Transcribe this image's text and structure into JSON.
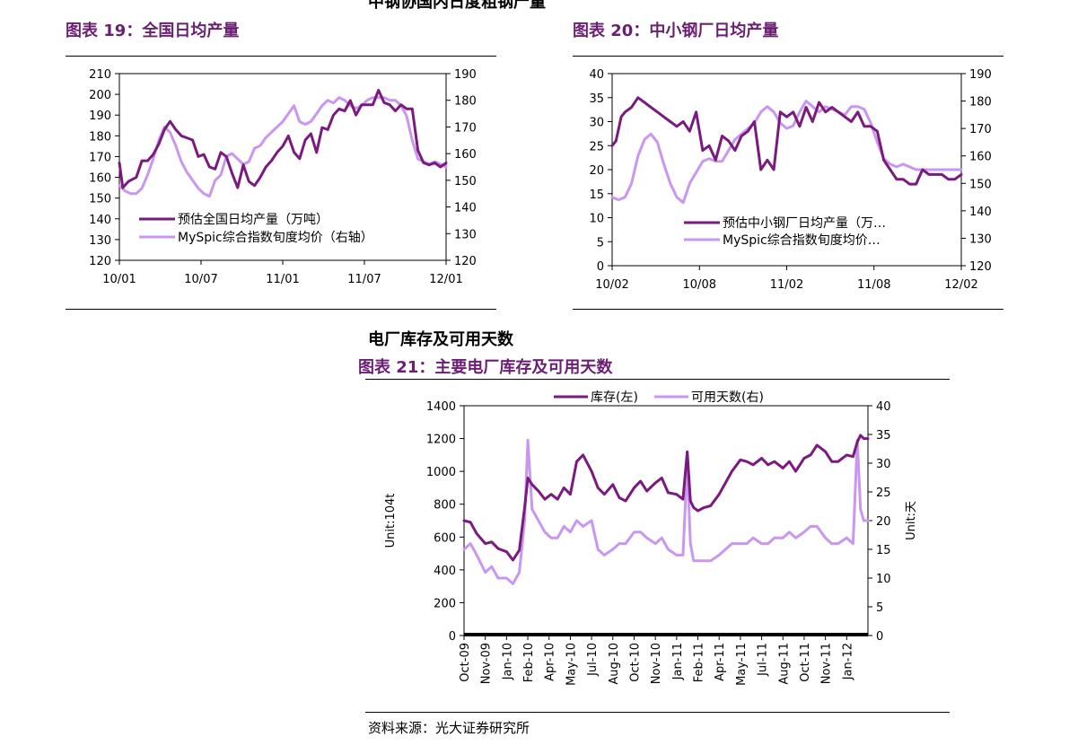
{
  "page": {
    "top_heading": "中钢协国内日度粗钢产量",
    "section_heading": "电厂库存及可用天数",
    "source": "资料来源：光大证券研究所"
  },
  "colors": {
    "dark_series": "#7a1a7f",
    "light_series": "#c996f0",
    "title": "#6b1f73"
  },
  "chart_data": [
    {
      "id": "fig19",
      "fig_label": "图表 19：全国日均产量",
      "type": "line",
      "x_ticks": [
        "10/01",
        "10/07",
        "11/01",
        "11/07",
        "12/01"
      ],
      "x_range": [
        0,
        29
      ],
      "y_left": {
        "range": [
          120,
          210
        ],
        "ticks": [
          120,
          130,
          140,
          150,
          160,
          170,
          180,
          190,
          200,
          210
        ]
      },
      "y_right": {
        "range": [
          120,
          190
        ],
        "ticks": [
          120,
          130,
          140,
          150,
          160,
          170,
          180,
          190
        ]
      },
      "legend": [
        "预估全国日均产量（万吨）",
        "MySpic综合指数旬度均价（右轴）"
      ],
      "series": [
        {
          "name": "预估全国日均产量（万吨）",
          "axis": "left",
          "color_key": "dark_series",
          "x": [
            0,
            0.3,
            0.8,
            1.5,
            2,
            2.5,
            3,
            3.5,
            4,
            4.5,
            5,
            5.5,
            6,
            6.5,
            7,
            7.5,
            8,
            8.5,
            9,
            9.5,
            10,
            10.5,
            11,
            11.5,
            12,
            12.5,
            13,
            13.5,
            14,
            14.5,
            15,
            15.5,
            16,
            16.5,
            17,
            17.5,
            18,
            18.5,
            19,
            19.5,
            20,
            20.5,
            21,
            21.5,
            22,
            22.5,
            23,
            23.5,
            24,
            24.5,
            25,
            25.5,
            26,
            26.5,
            27,
            27.5,
            28,
            28.5,
            29
          ],
          "values": [
            167,
            155,
            158,
            160,
            168,
            168,
            171,
            176,
            183,
            187,
            183,
            180,
            179,
            178,
            170,
            171,
            165,
            164,
            172,
            170,
            162,
            155,
            166,
            158,
            156,
            160,
            165,
            168,
            172,
            175,
            180,
            172,
            169,
            178,
            181,
            172,
            184,
            183,
            190,
            193,
            192,
            197,
            190,
            195,
            195,
            195,
            202,
            196,
            195,
            192,
            195,
            193,
            193,
            173,
            167,
            166,
            167,
            165,
            167
          ]
        },
        {
          "name": "MySpic综合指数旬度均价（右轴）",
          "axis": "right",
          "color_key": "light_series",
          "x": [
            0,
            0.5,
            1,
            1.5,
            2,
            2.5,
            3,
            3.5,
            4,
            4.5,
            5,
            5.5,
            6,
            6.5,
            7,
            7.5,
            8,
            8.5,
            9,
            9.5,
            10,
            10.5,
            11,
            11.5,
            12,
            12.5,
            13,
            13.5,
            14,
            14.5,
            15,
            15.5,
            16,
            16.5,
            17,
            17.5,
            18,
            18.5,
            19,
            19.5,
            20,
            20.5,
            21,
            21.5,
            22,
            22.5,
            23,
            23.5,
            24,
            24.5,
            25,
            25.5,
            26,
            26.5,
            27,
            27.5,
            28,
            28.5,
            29
          ],
          "values": [
            148,
            146,
            145,
            145,
            147,
            152,
            158,
            165,
            170,
            168,
            163,
            157,
            153,
            150,
            147,
            145,
            144,
            150,
            152,
            159,
            160,
            158,
            156,
            157,
            162,
            163,
            166,
            168,
            170,
            172,
            175,
            178,
            172,
            171,
            172,
            175,
            178,
            180,
            179,
            181,
            180,
            178,
            177,
            178,
            180,
            181,
            181,
            181,
            180,
            180,
            178,
            174,
            165,
            158,
            157,
            156,
            157,
            156,
            155
          ]
        }
      ]
    },
    {
      "id": "fig20",
      "fig_label": "图表 20：中小钢厂日均产量",
      "type": "line",
      "x_ticks": [
        "10/02",
        "10/08",
        "11/02",
        "11/08",
        "12/02"
      ],
      "x_range": [
        0,
        27
      ],
      "y_left": {
        "range": [
          0,
          40
        ],
        "ticks": [
          0,
          5,
          10,
          15,
          20,
          25,
          30,
          35,
          40
        ]
      },
      "y_right": {
        "range": [
          120,
          190
        ],
        "ticks": [
          120,
          130,
          140,
          150,
          160,
          170,
          180,
          190
        ]
      },
      "legend": [
        "预估中小钢厂日均产量（万…",
        "MySpic综合指数旬度均价…"
      ],
      "series": [
        {
          "name": "预估中小钢厂日均产量（万…",
          "axis": "left",
          "color_key": "dark_series",
          "x": [
            0,
            0.3,
            0.7,
            1,
            1.5,
            2,
            2.5,
            3,
            3.5,
            4,
            4.5,
            5,
            5.5,
            6,
            6.5,
            7,
            7.5,
            8,
            8.5,
            9,
            9.5,
            10,
            10.5,
            11,
            11.5,
            12,
            12.5,
            13,
            13.5,
            14,
            14.5,
            15,
            15.5,
            16,
            16.5,
            17,
            17.5,
            18,
            18.5,
            19,
            19.5,
            20,
            20.5,
            21,
            21.5,
            22,
            22.5,
            23,
            23.5,
            24,
            24.5,
            25,
            25.5,
            26,
            26.5,
            27
          ],
          "values": [
            25,
            26,
            31,
            32,
            33,
            35,
            34,
            33,
            32,
            31,
            30,
            29,
            30,
            28,
            32,
            24,
            25,
            22,
            27,
            26,
            24,
            27,
            28,
            30,
            20,
            22,
            20,
            32,
            31,
            32,
            29,
            33,
            30,
            34,
            32,
            33,
            32,
            31,
            30,
            32,
            29,
            29,
            28,
            22,
            20,
            18,
            18,
            17,
            17,
            20,
            19,
            19,
            19,
            18,
            18,
            19
          ]
        },
        {
          "name": "MySpic综合指数旬度均价…",
          "axis": "right",
          "color_key": "light_series",
          "x": [
            0,
            0.5,
            1,
            1.5,
            2,
            2.5,
            3,
            3.5,
            4,
            4.5,
            5,
            5.5,
            6,
            6.5,
            7,
            7.5,
            8,
            8.5,
            9,
            9.5,
            10,
            10.5,
            11,
            11.5,
            12,
            12.5,
            13,
            13.5,
            14,
            14.5,
            15,
            15.5,
            16,
            16.5,
            17,
            17.5,
            18,
            18.5,
            19,
            19.5,
            20,
            20.5,
            21,
            21.5,
            22,
            22.5,
            23,
            23.5,
            24,
            24.5,
            25,
            25.5,
            26,
            26.5,
            27
          ],
          "values": [
            145,
            144,
            145,
            150,
            160,
            166,
            168,
            165,
            157,
            150,
            145,
            143,
            150,
            154,
            158,
            159,
            158,
            158,
            162,
            166,
            168,
            170,
            172,
            176,
            178,
            176,
            172,
            170,
            171,
            176,
            180,
            178,
            176,
            178,
            177,
            176,
            175,
            178,
            178,
            177,
            172,
            165,
            159,
            157,
            156,
            157,
            156,
            155,
            155,
            155,
            155,
            155,
            155,
            155,
            155
          ]
        }
      ]
    },
    {
      "id": "fig21",
      "fig_label": "图表 21：主要电厂库存及可用天数",
      "type": "line",
      "x_ticks": [
        "Oct-09",
        "Nov-09",
        "Jan-10",
        "Feb-10",
        "Apr-10",
        "May-10",
        "Jul-10",
        "Aug-10",
        "Oct-10",
        "Nov-10",
        "Jan-11",
        "Feb-11",
        "Apr-11",
        "May-11",
        "Jul-11",
        "Aug-11",
        "Oct-11",
        "Nov-11",
        "Jan-12"
      ],
      "x_range": [
        0,
        19
      ],
      "y_left": {
        "label": "Unit:104t",
        "range": [
          0,
          1400
        ],
        "ticks": [
          0,
          200,
          400,
          600,
          800,
          1000,
          1200,
          1400
        ]
      },
      "y_right": {
        "label": "Unit:天",
        "range": [
          0,
          40
        ],
        "ticks": [
          0,
          5,
          10,
          15,
          20,
          25,
          30,
          35,
          40
        ]
      },
      "legend": [
        "库存(左)",
        "可用天数(右)"
      ],
      "series": [
        {
          "name": "库存(左)",
          "axis": "left",
          "color_key": "dark_series",
          "x": [
            0,
            0.3,
            0.6,
            1,
            1.3,
            1.6,
            2,
            2.3,
            2.6,
            2.85,
            3.0,
            3.2,
            3.5,
            3.8,
            4.1,
            4.4,
            4.7,
            5,
            5.3,
            5.6,
            6,
            6.3,
            6.6,
            7,
            7.3,
            7.6,
            8,
            8.3,
            8.6,
            9,
            9.3,
            9.6,
            10,
            10.3,
            10.5,
            10.65,
            10.8,
            11,
            11.3,
            11.6,
            12,
            12.3,
            12.6,
            13,
            13.3,
            13.6,
            14,
            14.3,
            14.6,
            15,
            15.3,
            15.6,
            16,
            16.3,
            16.6,
            17,
            17.3,
            17.6,
            18,
            18.3,
            18.5,
            18.65,
            18.8,
            19
          ],
          "values": [
            700,
            690,
            620,
            560,
            570,
            530,
            510,
            460,
            520,
            780,
            960,
            920,
            880,
            830,
            860,
            830,
            900,
            860,
            1060,
            1100,
            1000,
            900,
            860,
            920,
            840,
            820,
            900,
            940,
            880,
            930,
            960,
            870,
            860,
            830,
            1120,
            820,
            780,
            760,
            780,
            790,
            860,
            930,
            1000,
            1070,
            1060,
            1040,
            1080,
            1040,
            1060,
            1020,
            1060,
            1000,
            1080,
            1100,
            1160,
            1120,
            1060,
            1060,
            1100,
            1090,
            1180,
            1220,
            1200,
            1200
          ]
        },
        {
          "name": "可用天数(右)",
          "axis": "right",
          "color_key": "light_series",
          "x": [
            0,
            0.3,
            0.6,
            1,
            1.3,
            1.6,
            2,
            2.3,
            2.6,
            2.85,
            3.0,
            3.2,
            3.5,
            3.8,
            4.1,
            4.4,
            4.7,
            5,
            5.3,
            5.6,
            6,
            6.3,
            6.6,
            7,
            7.3,
            7.6,
            8,
            8.3,
            8.6,
            9,
            9.3,
            9.6,
            10,
            10.3,
            10.5,
            10.65,
            10.8,
            11,
            11.3,
            11.6,
            12,
            12.3,
            12.6,
            13,
            13.3,
            13.6,
            14,
            14.3,
            14.6,
            15,
            15.3,
            15.6,
            16,
            16.3,
            16.6,
            17,
            17.3,
            17.6,
            18,
            18.3,
            18.5,
            18.65,
            18.8,
            19
          ],
          "values": [
            15,
            16,
            14,
            11,
            12,
            10,
            10,
            9,
            11,
            20,
            34,
            22,
            20,
            18,
            17,
            17,
            19,
            18,
            20,
            19,
            20,
            15,
            14,
            15,
            16,
            16,
            18,
            18,
            17,
            16,
            17,
            15,
            14,
            14,
            30,
            16,
            13,
            13,
            13,
            13,
            14,
            15,
            16,
            16,
            16,
            17,
            16,
            16,
            17,
            17,
            18,
            17,
            18,
            19,
            19,
            17,
            16,
            16,
            17,
            16,
            34,
            22,
            20,
            20
          ]
        }
      ]
    }
  ]
}
